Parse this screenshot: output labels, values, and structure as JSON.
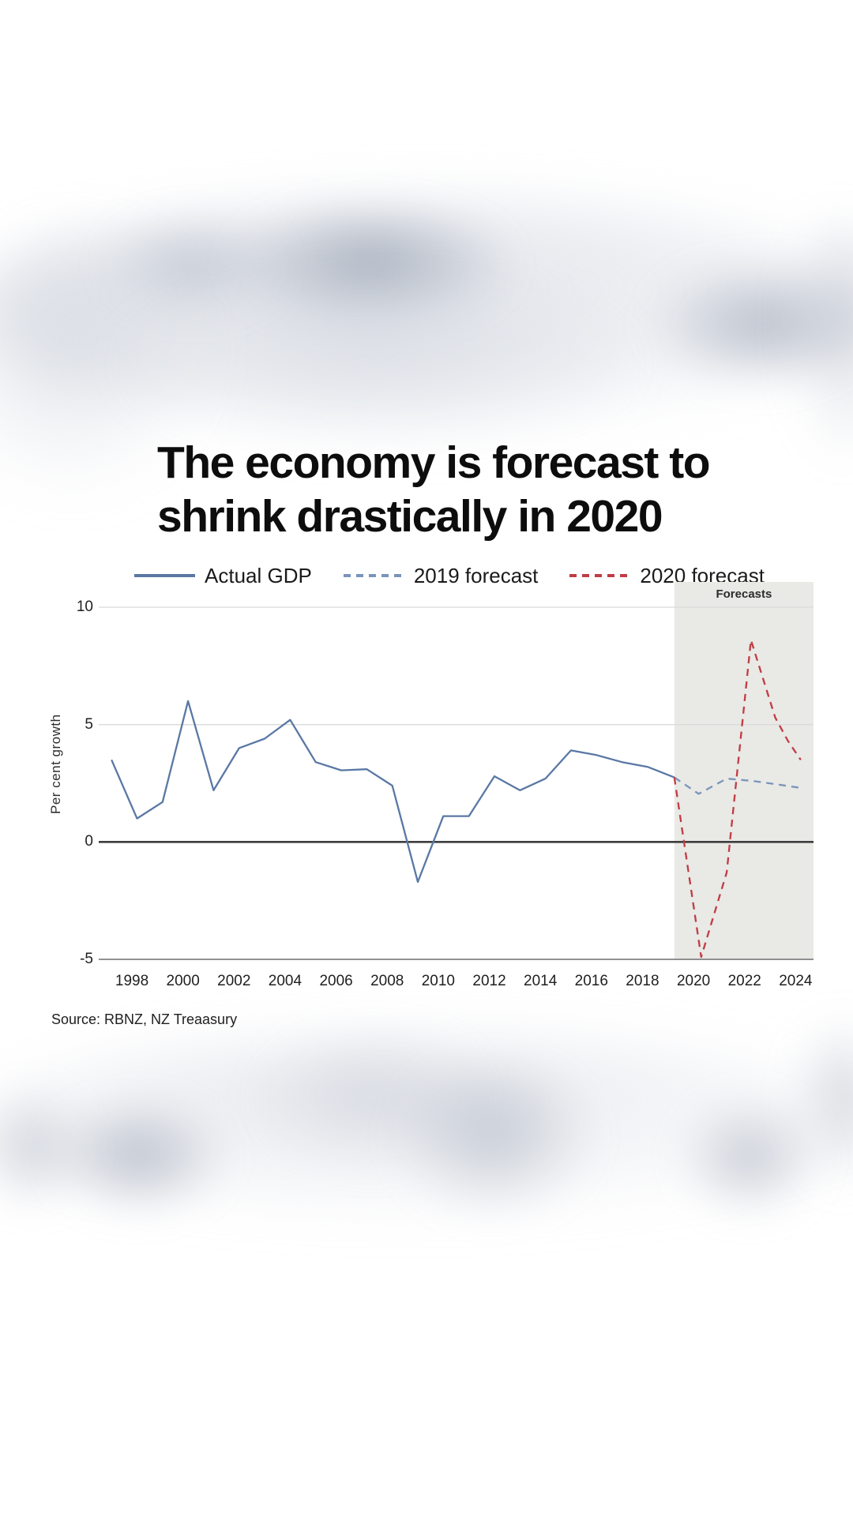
{
  "title": {
    "line1": "The economy is forecast to",
    "line2": "shrink drastically in 2020"
  },
  "source": "Source: RBNZ, NZ Treaasury",
  "chart_data": {
    "type": "line",
    "title": "The economy is forecast to shrink drastically in 2020",
    "xlabel": "",
    "ylabel": "Per cent growth",
    "xlim": [
      1996.7,
      2024.7
    ],
    "ylim": [
      -5,
      10
    ],
    "yticks": [
      10,
      5,
      0,
      -5
    ],
    "xticks": [
      1998,
      2000,
      2002,
      2004,
      2006,
      2008,
      2010,
      2012,
      2014,
      2016,
      2018,
      2020,
      2022,
      2024
    ],
    "grid": "horizontal",
    "legend_position": "top",
    "forecast_band": {
      "label": "Forecasts",
      "x_start": 2019.25,
      "x_end": 2024.7,
      "color": "#e9e9e6"
    },
    "series": [
      {
        "name": "Actual GDP",
        "style": "solid",
        "color": "#5a78a4",
        "points": [
          [
            1997.2,
            3.5
          ],
          [
            1998.2,
            1.0
          ],
          [
            1999.2,
            1.7
          ],
          [
            2000.2,
            6.0
          ],
          [
            2001.2,
            2.2
          ],
          [
            2002.2,
            4.0
          ],
          [
            2003.2,
            4.4
          ],
          [
            2004.2,
            5.2
          ],
          [
            2005.2,
            3.4
          ],
          [
            2006.2,
            3.05
          ],
          [
            2007.2,
            3.1
          ],
          [
            2008.2,
            2.4
          ],
          [
            2009.2,
            -1.7
          ],
          [
            2010.2,
            1.1
          ],
          [
            2011.2,
            1.1
          ],
          [
            2012.2,
            2.8
          ],
          [
            2013.2,
            2.2
          ],
          [
            2014.2,
            2.7
          ],
          [
            2015.2,
            3.9
          ],
          [
            2016.2,
            3.7
          ],
          [
            2017.2,
            3.4
          ],
          [
            2018.2,
            3.2
          ],
          [
            2019.25,
            2.75
          ]
        ]
      },
      {
        "name": "2019 forecast",
        "style": "dashed",
        "color": "#7a94ba",
        "points": [
          [
            2019.25,
            2.75
          ],
          [
            2020.2,
            2.05
          ],
          [
            2021.3,
            2.7
          ],
          [
            2022.3,
            2.6
          ],
          [
            2023.3,
            2.45
          ],
          [
            2024.2,
            2.3
          ]
        ]
      },
      {
        "name": "2020 forecast",
        "style": "dashed",
        "color": "#bf3d44",
        "points": [
          [
            2019.25,
            2.75
          ],
          [
            2020.3,
            -4.9
          ],
          [
            2021.3,
            -1.3
          ],
          [
            2022.25,
            8.6
          ],
          [
            2023.2,
            5.3
          ],
          [
            2023.7,
            4.3
          ],
          [
            2024.2,
            3.5
          ]
        ]
      }
    ]
  }
}
